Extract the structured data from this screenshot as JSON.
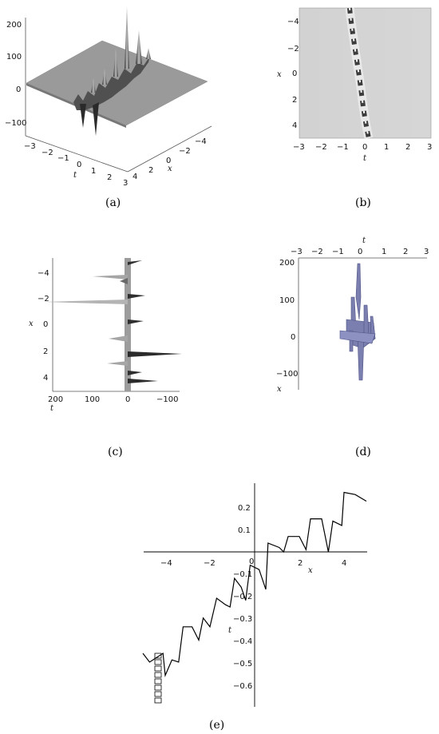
{
  "panels": [
    {
      "id": "a",
      "caption": "(a)",
      "type": "3d-surface",
      "z_ticks": [
        "200",
        "100",
        "0",
        "−100"
      ],
      "t_ticks": [
        "−3",
        "−2",
        "−1",
        "0",
        "1",
        "2",
        "3"
      ],
      "x_ticks": [
        "4",
        "2",
        "0",
        "−2",
        "−4"
      ],
      "t_label": "t",
      "x_label": "x"
    },
    {
      "id": "b",
      "caption": "(b)",
      "type": "density",
      "y_label": "x",
      "x_label": "t",
      "y_ticks": [
        "−4",
        "−2",
        "0",
        "2",
        "4"
      ],
      "x_ticks": [
        "−3",
        "−2",
        "−1",
        "0",
        "1",
        "2",
        "3"
      ]
    },
    {
      "id": "c",
      "caption": "(c)",
      "type": "3d-projection",
      "y_label": "x",
      "x_label": "t",
      "y_ticks": [
        "−4",
        "−2",
        "0",
        "2",
        "4"
      ],
      "x_ticks": [
        "200",
        "100",
        "0",
        "−100"
      ]
    },
    {
      "id": "d",
      "caption": "(d)",
      "type": "3d-projection",
      "top_label": "t",
      "side_label": "x",
      "top_ticks": [
        "−3",
        "−2",
        "−1",
        "0",
        "1",
        "2",
        "3"
      ],
      "z_ticks": [
        "200",
        "100",
        "0",
        "−100"
      ]
    },
    {
      "id": "e",
      "caption": "(e)",
      "type": "implicit-curve",
      "x_label": "x",
      "y_label": "t",
      "x_ticks": [
        "−4",
        "−2",
        "0",
        "2",
        "4"
      ],
      "y_ticks": [
        "0.2",
        "0.1",
        "−0.1",
        "−0.2",
        "−0.3",
        "−0.4",
        "−0.5",
        "−0.6"
      ],
      "origin_label": "0"
    }
  ],
  "chart_data": [
    {
      "type": "surface",
      "panel": "a",
      "zlim": [
        -100,
        200
      ],
      "tlim": [
        -3,
        3
      ],
      "xlim": [
        -4,
        4
      ]
    },
    {
      "type": "heatmap",
      "panel": "b",
      "xlim": [
        -3,
        3
      ],
      "ylim": [
        -5,
        5
      ]
    },
    {
      "type": "line",
      "panel": "e",
      "xlim": [
        -5,
        5
      ],
      "ylim": [
        -0.65,
        0.27
      ],
      "series": [
        {
          "points": [
            [
              -5,
              -0.46
            ],
            [
              -4.7,
              -0.5
            ],
            [
              -4.4,
              -0.48
            ],
            [
              -4.1,
              -0.46
            ],
            [
              -4.0,
              -0.56
            ],
            [
              -3.7,
              -0.49
            ],
            [
              -3.4,
              -0.5
            ],
            [
              -3.2,
              -0.34
            ],
            [
              -2.8,
              -0.34
            ],
            [
              -2.5,
              -0.4
            ],
            [
              -2.3,
              -0.3
            ],
            [
              -2.0,
              -0.34
            ],
            [
              -1.7,
              -0.21
            ],
            [
              -1.3,
              -0.24
            ],
            [
              -1.1,
              -0.25
            ],
            [
              -0.9,
              -0.12
            ],
            [
              -0.6,
              -0.16
            ],
            [
              -0.4,
              -0.22
            ],
            [
              -0.2,
              -0.06
            ],
            [
              0.2,
              -0.08
            ],
            [
              0.5,
              -0.17
            ],
            [
              0.6,
              0.04
            ],
            [
              1.1,
              0.02
            ],
            [
              1.3,
              0.0
            ],
            [
              1.5,
              0.07
            ],
            [
              2.0,
              0.07
            ],
            [
              2.3,
              0.01
            ],
            [
              2.5,
              0.15
            ],
            [
              3.0,
              0.15
            ],
            [
              3.3,
              0.0
            ],
            [
              3.5,
              0.14
            ],
            [
              3.9,
              0.12
            ],
            [
              4.0,
              0.27
            ],
            [
              4.5,
              0.26
            ],
            [
              5.0,
              0.23
            ]
          ]
        }
      ]
    }
  ]
}
